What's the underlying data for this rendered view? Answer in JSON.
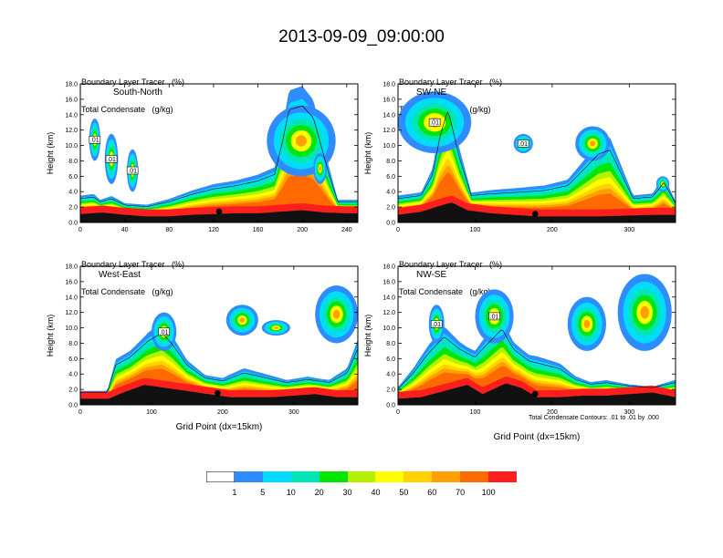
{
  "figure": {
    "title": "2013-09-09_09:00:00",
    "xlabel": "Grid Point (dx=15km)",
    "contour_note": "Total Condensate Contours: .01 to .01 by .000"
  },
  "colorbar": {
    "colors": [
      "#ffffff",
      "#2f8cff",
      "#00dcff",
      "#00e6b4",
      "#00e600",
      "#b4f000",
      "#ffff00",
      "#ffd200",
      "#ffa000",
      "#ff6a00",
      "#ff1e1e"
    ],
    "labels": [
      "1",
      "5",
      "10",
      "20",
      "30",
      "40",
      "50",
      "60",
      "70",
      "100"
    ]
  },
  "chart_data": [
    {
      "type": "heatmap",
      "panel": "South-North",
      "header_line1": "Boundary Layer Tracer   (%)",
      "header_line2": "Total Condensate   (g/kg)",
      "ylabel": "Height (km)",
      "ylim": [
        0,
        18
      ],
      "yticks": [
        "0.0",
        "2.0",
        "4.0",
        "6.0",
        "8.0",
        "10.0",
        "12.0",
        "14.0",
        "16.0",
        "18.0"
      ],
      "xlim": [
        0,
        250
      ],
      "xticks": [
        0,
        40,
        80,
        120,
        160,
        200,
        240
      ],
      "marker_x": 125,
      "contour_box_labels": [
        ".01",
        ".01",
        ".01"
      ],
      "terrain": [
        [
          0,
          1.1
        ],
        [
          20,
          1.3
        ],
        [
          40,
          1.0
        ],
        [
          60,
          0.8
        ],
        [
          80,
          0.8
        ],
        [
          100,
          1.0
        ],
        [
          120,
          1.1
        ],
        [
          140,
          1.2
        ],
        [
          160,
          1.2
        ],
        [
          180,
          1.4
        ],
        [
          200,
          1.6
        ],
        [
          220,
          1.3
        ],
        [
          240,
          1.2
        ],
        [
          250,
          1.2
        ]
      ],
      "tracer_top": [
        [
          0,
          3
        ],
        [
          12,
          3.2
        ],
        [
          18,
          2.6
        ],
        [
          28,
          3
        ],
        [
          40,
          2.2
        ],
        [
          60,
          2
        ],
        [
          80,
          2.6
        ],
        [
          100,
          3.5
        ],
        [
          120,
          4.2
        ],
        [
          140,
          4.6
        ],
        [
          160,
          5.2
        ],
        [
          175,
          6
        ],
        [
          182,
          10
        ],
        [
          188,
          14
        ],
        [
          200,
          14.5
        ],
        [
          210,
          13
        ],
        [
          218,
          9
        ],
        [
          224,
          6
        ],
        [
          232,
          2.6
        ],
        [
          250,
          2.6
        ]
      ],
      "plumes": [
        [
          8,
          18,
          8,
          13.5
        ],
        [
          22,
          34,
          5,
          11.5
        ],
        [
          42,
          52,
          4,
          9.5
        ],
        [
          168,
          230,
          6,
          15.2
        ],
        [
          210,
          222,
          5,
          9
        ]
      ]
    },
    {
      "type": "heatmap",
      "panel": "SW-NE",
      "header_line1": "Boundary Layer Tracer   (%)",
      "header_line2": "Total Condensate   (g/kg)",
      "ylabel": "Height (km)",
      "ylim": [
        0,
        18
      ],
      "yticks": [
        "0.0",
        "2.0",
        "4.0",
        "6.0",
        "8.0",
        "10.0",
        "12.0",
        "14.0",
        "16.0",
        "18.0"
      ],
      "xlim": [
        0,
        360
      ],
      "xticks": [
        0,
        100,
        200,
        300
      ],
      "marker_x": 178,
      "contour_box_labels": [
        ".01",
        ".01"
      ],
      "terrain": [
        [
          0,
          1.0
        ],
        [
          30,
          1.4
        ],
        [
          55,
          2.2
        ],
        [
          70,
          2.6
        ],
        [
          90,
          1.6
        ],
        [
          120,
          1.2
        ],
        [
          150,
          1.0
        ],
        [
          180,
          0.8
        ],
        [
          220,
          0.8
        ],
        [
          260,
          0.8
        ],
        [
          300,
          0.9
        ],
        [
          330,
          1.0
        ],
        [
          360,
          1.0
        ]
      ],
      "tracer_top": [
        [
          0,
          3
        ],
        [
          30,
          3.4
        ],
        [
          45,
          6
        ],
        [
          55,
          11
        ],
        [
          65,
          14
        ],
        [
          80,
          8
        ],
        [
          95,
          3.4
        ],
        [
          120,
          3.6
        ],
        [
          160,
          3.8
        ],
        [
          190,
          4
        ],
        [
          220,
          4.6
        ],
        [
          240,
          6.5
        ],
        [
          260,
          8.5
        ],
        [
          275,
          9
        ],
        [
          290,
          6
        ],
        [
          305,
          3
        ],
        [
          330,
          3.2
        ],
        [
          345,
          5
        ],
        [
          360,
          2.4
        ]
      ],
      "plumes": [
        [
          0,
          95,
          9,
          17
        ],
        [
          150,
          175,
          9,
          11.5
        ],
        [
          230,
          275,
          8,
          12.5
        ],
        [
          335,
          352,
          4,
          6
        ]
      ]
    },
    {
      "type": "heatmap",
      "panel": "West-East",
      "header_line1": "Boundary Layer Tracer   (%)",
      "header_line2": "Total Condensate   (g/kg)",
      "ylabel": "Height (km)",
      "ylim": [
        0,
        18
      ],
      "yticks": [
        "0.0",
        "2.0",
        "4.0",
        "6.0",
        "8.0",
        "10.0",
        "12.0",
        "14.0",
        "16.0",
        "18.0"
      ],
      "xlim": [
        0,
        390
      ],
      "xticks": [
        0,
        100,
        200,
        300
      ],
      "marker_x": 193,
      "contour_box_labels": [
        ".01"
      ],
      "terrain": [
        [
          0,
          0.8
        ],
        [
          40,
          0.8
        ],
        [
          60,
          1.6
        ],
        [
          90,
          2.6
        ],
        [
          120,
          2.2
        ],
        [
          150,
          1.8
        ],
        [
          180,
          1.4
        ],
        [
          210,
          1.0
        ],
        [
          240,
          1.0
        ],
        [
          270,
          1.0
        ],
        [
          300,
          1.2
        ],
        [
          330,
          1.4
        ],
        [
          360,
          1.0
        ],
        [
          390,
          1.0
        ]
      ],
      "tracer_top": [
        [
          0,
          1.6
        ],
        [
          38,
          1.6
        ],
        [
          50,
          5
        ],
        [
          70,
          6
        ],
        [
          95,
          8
        ],
        [
          115,
          9
        ],
        [
          130,
          7.5
        ],
        [
          150,
          5
        ],
        [
          175,
          3.4
        ],
        [
          200,
          3
        ],
        [
          230,
          4
        ],
        [
          260,
          3.4
        ],
        [
          290,
          2.8
        ],
        [
          320,
          3.2
        ],
        [
          350,
          2.8
        ],
        [
          375,
          4
        ],
        [
          390,
          7
        ]
      ],
      "plumes": [
        [
          100,
          135,
          7,
          12
        ],
        [
          205,
          250,
          9,
          13
        ],
        [
          255,
          295,
          9,
          11
        ],
        [
          330,
          390,
          8,
          15.5
        ]
      ]
    },
    {
      "type": "heatmap",
      "panel": "NW-SE",
      "header_line1": "Boundary Layer Tracer   (%)",
      "header_line2": "Total Condensate   (g/kg)",
      "ylabel": "Height (km)",
      "ylim": [
        0,
        18
      ],
      "yticks": [
        "0.0",
        "2.0",
        "4.0",
        "6.0",
        "8.0",
        "10.0",
        "12.0",
        "14.0",
        "16.0",
        "18.0"
      ],
      "xlim": [
        0,
        360
      ],
      "xticks": [
        0,
        100,
        200,
        300
      ],
      "marker_x": 178,
      "contour_box_labels": [
        ".01",
        ".01"
      ],
      "terrain": [
        [
          0,
          0.8
        ],
        [
          30,
          1.0
        ],
        [
          60,
          1.8
        ],
        [
          90,
          2.6
        ],
        [
          110,
          1.4
        ],
        [
          140,
          2.8
        ],
        [
          160,
          2.2
        ],
        [
          180,
          1.0
        ],
        [
          210,
          1.0
        ],
        [
          240,
          1.2
        ],
        [
          270,
          1.2
        ],
        [
          300,
          1.4
        ],
        [
          330,
          1.6
        ],
        [
          360,
          1.0
        ]
      ],
      "tracer_top": [
        [
          0,
          2
        ],
        [
          20,
          4
        ],
        [
          40,
          6.5
        ],
        [
          60,
          8.5
        ],
        [
          80,
          7
        ],
        [
          100,
          6
        ],
        [
          120,
          8
        ],
        [
          135,
          9.5
        ],
        [
          150,
          7
        ],
        [
          170,
          5.5
        ],
        [
          190,
          5
        ],
        [
          210,
          4.5
        ],
        [
          230,
          3.2
        ],
        [
          250,
          2.6
        ],
        [
          270,
          2.8
        ],
        [
          300,
          2.4
        ],
        [
          330,
          2.2
        ],
        [
          360,
          2.8
        ]
      ],
      "plumes": [
        [
          40,
          60,
          8,
          13
        ],
        [
          100,
          150,
          8,
          15
        ],
        [
          220,
          270,
          7,
          14
        ],
        [
          285,
          355,
          7,
          17
        ]
      ]
    }
  ]
}
